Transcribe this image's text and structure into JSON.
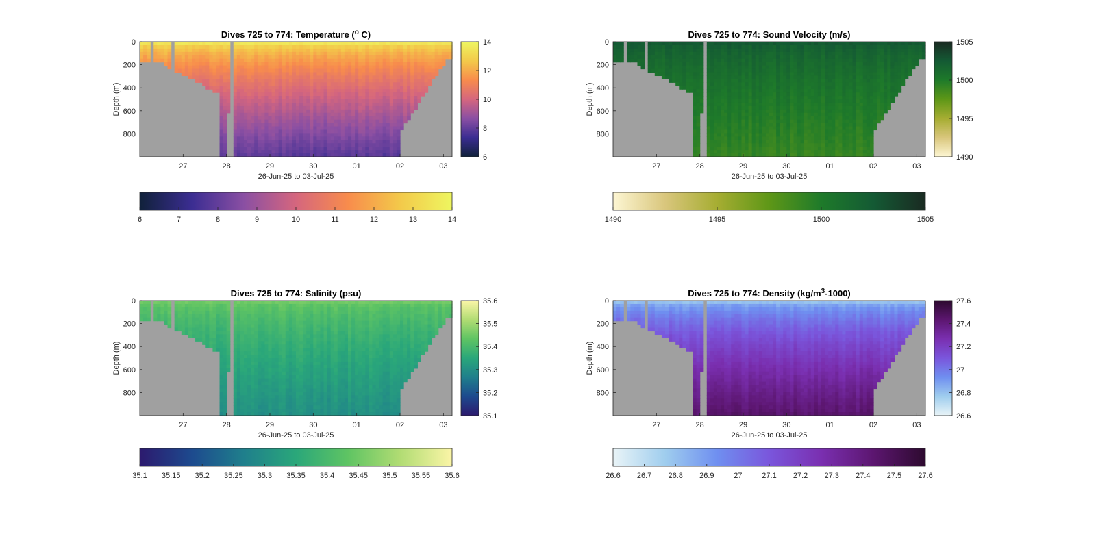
{
  "figure": {
    "panels": [
      {
        "id": "temperature",
        "title": "Dives 725 to 774: Temperature (",
        "title_sup": "o",
        "title_end": " C)",
        "ylabel": "Depth (m)",
        "xlabel": "26-Jun-25 to 03-Jul-25",
        "y_ticks": [
          "0",
          "200",
          "400",
          "600",
          "800"
        ],
        "x_ticks": [
          "27",
          "28",
          "29",
          "30",
          "01",
          "02",
          "03"
        ],
        "colorbar_ticks": [
          "6",
          "8",
          "10",
          "12",
          "14"
        ],
        "hbar_ticks": [
          "6",
          "7",
          "8",
          "9",
          "10",
          "11",
          "12",
          "13",
          "14"
        ],
        "colors": [
          "#10213a",
          "#3b2d92",
          "#8a4fa3",
          "#d5667e",
          "#f88c4c",
          "#f3c94a",
          "#eef660"
        ],
        "surface_value": 13.5,
        "deep_value": 7.8
      },
      {
        "id": "sound_velocity",
        "title": "Dives 725 to 774: Sound Velocity (m/s)",
        "title_sup": "",
        "title_end": "",
        "ylabel": "Depth (m)",
        "xlabel": "26-Jun-25 to 03-Jul-25",
        "y_ticks": [
          "0",
          "200",
          "400",
          "600",
          "800"
        ],
        "x_ticks": [
          "27",
          "28",
          "29",
          "30",
          "01",
          "02",
          "03"
        ],
        "colorbar_ticks": [
          "1490",
          "1495",
          "1500",
          "1505"
        ],
        "hbar_ticks": [
          "1490",
          "1495",
          "1500",
          "1505"
        ],
        "colors": [
          "#fdf6d3",
          "#d9c67c",
          "#a6ad32",
          "#5e9717",
          "#1e7a2a",
          "#145a34",
          "#1a2a22"
        ],
        "surface_value": 1502.5,
        "deep_value": 1499
      },
      {
        "id": "salinity",
        "title": "Dives 725 to 774: Salinity (psu)",
        "title_sup": "",
        "title_end": "",
        "ylabel": "Depth (m)",
        "xlabel": "26-Jun-25 to 03-Jul-25",
        "y_ticks": [
          "0",
          "200",
          "400",
          "600",
          "800"
        ],
        "x_ticks": [
          "27",
          "28",
          "29",
          "30",
          "01",
          "02",
          "03"
        ],
        "colorbar_ticks": [
          "35.1",
          "35.2",
          "35.3",
          "35.4",
          "35.5",
          "35.6"
        ],
        "hbar_ticks": [
          "35.1",
          "35.15",
          "35.2",
          "35.25",
          "35.3",
          "35.35",
          "35.4",
          "35.45",
          "35.5",
          "35.55",
          "35.6"
        ],
        "colors": [
          "#2c1a6e",
          "#1d4a8e",
          "#1f7f8c",
          "#2aa77a",
          "#5fc463",
          "#b1dc73",
          "#fbf5a7"
        ],
        "surface_value": 35.45,
        "deep_value": 35.3
      },
      {
        "id": "density",
        "title": "Dives 725 to 774: Density (kg/m",
        "title_sup": "3",
        "title_end": "-1000)",
        "ylabel": "Depth (m)",
        "xlabel": "26-Jun-25 to 03-Jul-25",
        "y_ticks": [
          "0",
          "200",
          "400",
          "600",
          "800"
        ],
        "x_ticks": [
          "27",
          "28",
          "29",
          "30",
          "01",
          "02",
          "03"
        ],
        "colorbar_ticks": [
          "26.6",
          "26.8",
          "27",
          "27.2",
          "27.4",
          "27.6"
        ],
        "hbar_ticks": [
          "26.6",
          "26.7",
          "26.8",
          "26.9",
          "27",
          "27.1",
          "27.2",
          "27.3",
          "27.4",
          "27.5",
          "27.6"
        ],
        "colors": [
          "#e9f4f7",
          "#9fcdee",
          "#6f8ff0",
          "#7a56dc",
          "#7a2fb0",
          "#5c1670",
          "#2d0a2f"
        ],
        "surface_value": 26.8,
        "deep_value": 27.45
      }
    ]
  },
  "chart_data": [
    {
      "type": "heatmap",
      "title": "Dives 725 to 774: Temperature (o C)",
      "xlabel": "26-Jun-25 to 03-Jul-25",
      "ylabel": "Depth (m)",
      "ylim": [
        0,
        1000
      ],
      "y_reversed": true,
      "clim": [
        6,
        14
      ],
      "x_categories": [
        "27",
        "28",
        "29",
        "30",
        "01",
        "02",
        "03"
      ]
    },
    {
      "type": "heatmap",
      "title": "Dives 725 to 774: Sound Velocity (m/s)",
      "xlabel": "26-Jun-25 to 03-Jul-25",
      "ylabel": "Depth (m)",
      "ylim": [
        0,
        1000
      ],
      "y_reversed": true,
      "clim": [
        1490,
        1505
      ],
      "x_categories": [
        "27",
        "28",
        "29",
        "30",
        "01",
        "02",
        "03"
      ]
    },
    {
      "type": "heatmap",
      "title": "Dives 725 to 774: Salinity (psu)",
      "xlabel": "26-Jun-25 to 03-Jul-25",
      "ylabel": "Depth (m)",
      "ylim": [
        0,
        1000
      ],
      "y_reversed": true,
      "clim": [
        35.1,
        35.6
      ],
      "x_categories": [
        "27",
        "28",
        "29",
        "30",
        "01",
        "02",
        "03"
      ]
    },
    {
      "type": "heatmap",
      "title": "Dives 725 to 774: Density (kg/m3-1000)",
      "xlabel": "26-Jun-25 to 03-Jul-25",
      "ylabel": "Depth (m)",
      "ylim": [
        0,
        1000
      ],
      "y_reversed": true,
      "clim": [
        26.6,
        27.6
      ],
      "x_categories": [
        "27",
        "28",
        "29",
        "30",
        "01",
        "02",
        "03"
      ]
    }
  ]
}
